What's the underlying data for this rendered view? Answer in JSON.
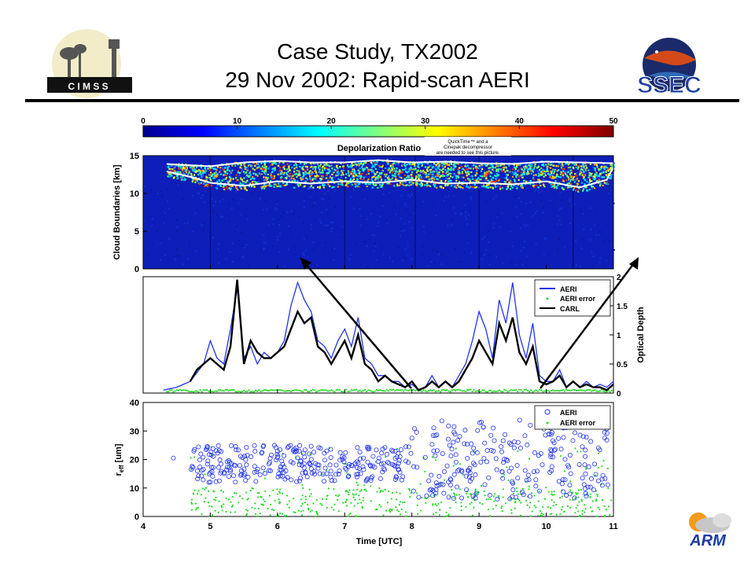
{
  "slide": {
    "title_line1": "Case Study, TX2002",
    "title_line2": "29 Nov 2002: Rapid-scan AERI"
  },
  "logos": {
    "cimss_text": "C I M S S",
    "ssec_text": "SSEC",
    "arm_text": "ARM"
  },
  "colors": {
    "aeri": "#2233ee",
    "carl": "#000000",
    "error": "#22dd22",
    "panel_bg": "#0d1fb8",
    "boundary": "#ffffff"
  },
  "chart_data": [
    {
      "type": "heatmap",
      "colorbar": {
        "label": "Depolarization Ratio",
        "ticks": [
          "0",
          "10",
          "20",
          "30",
          "40",
          "50"
        ],
        "range": [
          0,
          50
        ]
      },
      "ylabel": "Cloud Boundaries [km]",
      "yticks": [
        "0",
        "5",
        "10",
        "15"
      ],
      "ylim": [
        0,
        15
      ],
      "xlim": [
        4,
        11
      ],
      "placeholder_note": "QuickTime™ and a Cinepak decompressor are needed to see this picture.",
      "cloud_top_km": [
        [
          4.35,
          13.9
        ],
        [
          4.5,
          13.8
        ],
        [
          5.0,
          13.6
        ],
        [
          5.5,
          14.1
        ],
        [
          6.0,
          14.3
        ],
        [
          6.5,
          14.1
        ],
        [
          7.0,
          14.1
        ],
        [
          7.5,
          14.4
        ],
        [
          8.0,
          14.1
        ],
        [
          8.5,
          14.2
        ],
        [
          9.0,
          14.0
        ],
        [
          9.5,
          13.9
        ],
        [
          10.0,
          14.2
        ],
        [
          10.5,
          14.1
        ],
        [
          11.0,
          14.0
        ]
      ],
      "cloud_base_km": [
        [
          4.35,
          12.9
        ],
        [
          4.7,
          12.2
        ],
        [
          5.0,
          11.4
        ],
        [
          5.5,
          11.0
        ],
        [
          6.0,
          11.6
        ],
        [
          6.5,
          11.3
        ],
        [
          7.0,
          11.6
        ],
        [
          7.5,
          11.4
        ],
        [
          8.0,
          11.8
        ],
        [
          8.5,
          11.3
        ],
        [
          9.0,
          11.4
        ],
        [
          9.5,
          11.2
        ],
        [
          10.0,
          11.6
        ],
        [
          10.5,
          10.8
        ],
        [
          10.9,
          11.8
        ],
        [
          11.0,
          13.5
        ]
      ]
    },
    {
      "type": "line",
      "ylabel": "Optical Depth",
      "yticks": [
        "0",
        "0.5",
        "1",
        "1.5",
        "2"
      ],
      "ylim": [
        0,
        2
      ],
      "xlim": [
        4,
        11
      ],
      "legend": [
        "AERI",
        "AERI error",
        "CARL"
      ],
      "legend_position": "top-right",
      "series": [
        {
          "name": "AERI",
          "x": [
            4.3,
            4.5,
            4.7,
            4.9,
            5.0,
            5.1,
            5.2,
            5.3,
            5.4,
            5.5,
            5.6,
            5.7,
            5.8,
            5.9,
            6.0,
            6.1,
            6.2,
            6.3,
            6.4,
            6.5,
            6.6,
            6.7,
            6.8,
            6.9,
            7.0,
            7.1,
            7.2,
            7.3,
            7.4,
            7.5,
            7.6,
            7.7,
            7.8,
            7.9,
            8.0,
            8.1,
            8.2,
            8.3,
            8.4,
            8.5,
            8.6,
            8.7,
            8.8,
            8.9,
            9.0,
            9.1,
            9.2,
            9.3,
            9.4,
            9.5,
            9.6,
            9.7,
            9.8,
            9.9,
            10.0,
            10.1,
            10.2,
            10.3,
            10.4,
            10.5,
            10.6,
            10.7,
            10.8,
            10.9,
            11.0
          ],
          "y": [
            0.05,
            0.1,
            0.2,
            0.5,
            0.9,
            0.6,
            0.5,
            1.1,
            1.8,
            0.6,
            0.8,
            0.5,
            0.7,
            0.6,
            0.7,
            0.9,
            1.5,
            1.9,
            1.6,
            1.4,
            0.9,
            0.8,
            0.6,
            0.9,
            1.1,
            0.8,
            1.3,
            0.6,
            0.5,
            0.3,
            0.3,
            0.2,
            0.2,
            0.1,
            0.15,
            0.05,
            0.1,
            0.3,
            0.1,
            0.2,
            0.1,
            0.3,
            0.5,
            0.9,
            1.4,
            1.1,
            0.6,
            1.6,
            1.2,
            1.9,
            1.0,
            0.6,
            1.2,
            0.3,
            0.2,
            0.2,
            0.4,
            0.1,
            0.2,
            0.1,
            0.2,
            0.1,
            0.15,
            0.1,
            0.2
          ]
        },
        {
          "name": "CARL",
          "x": [
            4.7,
            4.8,
            4.9,
            5.0,
            5.1,
            5.2,
            5.3,
            5.4,
            5.5,
            5.6,
            5.7,
            5.8,
            5.9,
            6.0,
            6.1,
            6.2,
            6.3,
            6.4,
            6.5,
            6.6,
            6.7,
            6.8,
            6.9,
            7.0,
            7.1,
            7.2,
            7.3,
            7.4,
            7.5,
            7.6,
            7.7,
            7.8,
            7.9,
            8.0,
            8.1,
            8.2,
            8.3,
            8.4,
            8.5,
            8.6,
            8.7,
            8.8,
            8.9,
            9.0,
            9.1,
            9.2,
            9.3,
            9.4,
            9.5,
            9.6,
            9.7,
            9.8,
            9.9,
            10.0,
            10.1,
            10.2,
            10.3,
            10.4,
            10.5,
            10.6,
            10.7,
            10.8,
            10.9,
            11.0
          ],
          "y": [
            0.2,
            0.4,
            0.5,
            0.6,
            0.5,
            0.4,
            0.8,
            1.95,
            0.5,
            0.9,
            0.7,
            0.6,
            0.6,
            0.7,
            0.8,
            1.1,
            1.4,
            1.2,
            1.3,
            0.8,
            0.7,
            0.5,
            0.7,
            0.9,
            0.6,
            1.0,
            0.5,
            0.4,
            0.2,
            0.3,
            0.2,
            0.15,
            0.1,
            0.2,
            0.05,
            0.1,
            0.2,
            0.1,
            0.2,
            0.1,
            0.2,
            0.4,
            0.6,
            0.9,
            0.7,
            0.5,
            1.2,
            0.9,
            1.3,
            0.7,
            0.5,
            0.8,
            0.2,
            0.15,
            0.2,
            0.3,
            0.1,
            0.2,
            0.1,
            0.15,
            0.1,
            0.1,
            0.05,
            0.15
          ]
        },
        {
          "name": "AERI error",
          "level": 0.04
        }
      ]
    },
    {
      "type": "scatter",
      "ylabel": "r_eff [um]",
      "xlabel": "Time [UTC]",
      "xticks": [
        "4",
        "5",
        "6",
        "7",
        "8",
        "9",
        "10",
        "11"
      ],
      "yticks": [
        "0",
        "10",
        "20",
        "30",
        "40"
      ],
      "xlim": [
        4,
        11
      ],
      "ylim": [
        0,
        40
      ],
      "legend": [
        "AERI",
        "AERI error"
      ],
      "legend_position": "top-right",
      "series": [
        {
          "name": "AERI",
          "x_range": [
            4.7,
            11.0
          ],
          "y_typical": [
            10,
            25
          ],
          "y_range": [
            2,
            38
          ]
        },
        {
          "name": "AERI error",
          "x_range": [
            4.7,
            11.0
          ],
          "y_typical": [
            0,
            10
          ],
          "y_range": [
            0,
            25
          ]
        }
      ]
    }
  ]
}
